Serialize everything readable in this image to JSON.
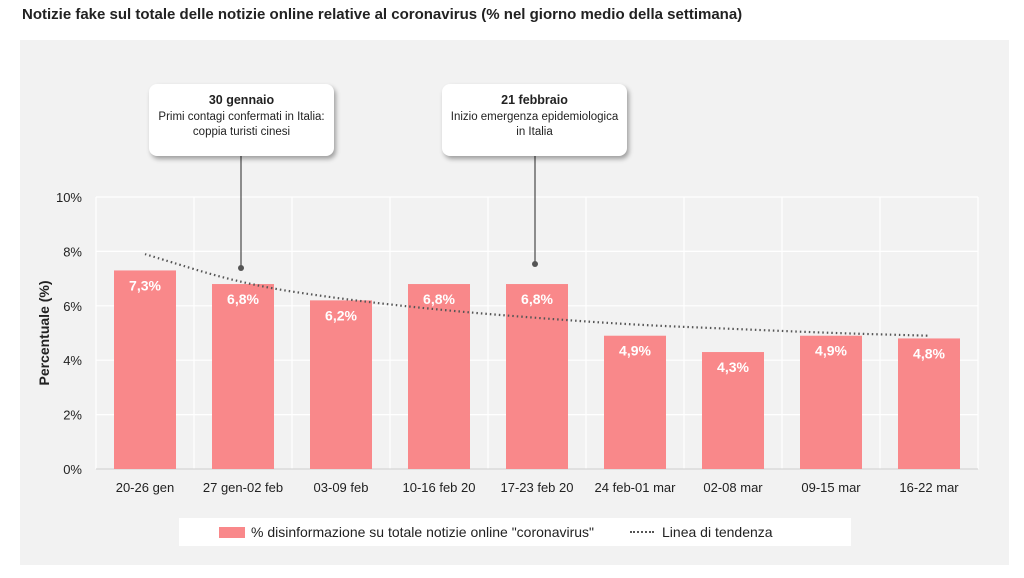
{
  "title": "Notizie fake sul totale delle notizie online relative al coronavirus (% nel giorno medio della settimana)",
  "colors": {
    "bar": "#f9888a",
    "trend": "#555555",
    "panel": "#f2f2f2",
    "label": "#ffffff"
  },
  "callouts": [
    {
      "title": "30 gennaio",
      "body": "Primi contagi confermati in Italia: coppia turisti cinesi",
      "category": "27 gen-02 feb"
    },
    {
      "title": "21 febbraio",
      "body": "Inizio emergenza epidemiologica in Italia",
      "category": "17-23 feb 20"
    }
  ],
  "legend": {
    "bar_label": "% disinformazione su totale notizie online \"coronavirus\"",
    "trend_label": "Linea di tendenza"
  },
  "chart_data": {
    "type": "bar",
    "categories": [
      "20-26 gen",
      "27 gen-02 feb",
      "03-09 feb",
      "10-16 feb 20",
      "17-23 feb 20",
      "24 feb-01 mar",
      "02-08 mar",
      "09-15 mar",
      "16-22 mar"
    ],
    "values": [
      7.3,
      6.8,
      6.2,
      6.8,
      6.8,
      4.9,
      4.3,
      4.9,
      4.8
    ],
    "data_labels": [
      "7,3%",
      "6,8%",
      "6,2%",
      "6,8%",
      "6,8%",
      "4,9%",
      "4,3%",
      "4,9%",
      "4,8%"
    ],
    "trend_values": [
      7.9,
      6.8,
      6.25,
      5.85,
      5.55,
      5.3,
      5.15,
      5.0,
      4.9
    ],
    "ylabel": "Percentuale (%)",
    "yticks": [
      "0%",
      "2%",
      "4%",
      "6%",
      "8%",
      "10%"
    ],
    "ylim": [
      0,
      10
    ],
    "grid": true,
    "legend_position": "bottom"
  }
}
